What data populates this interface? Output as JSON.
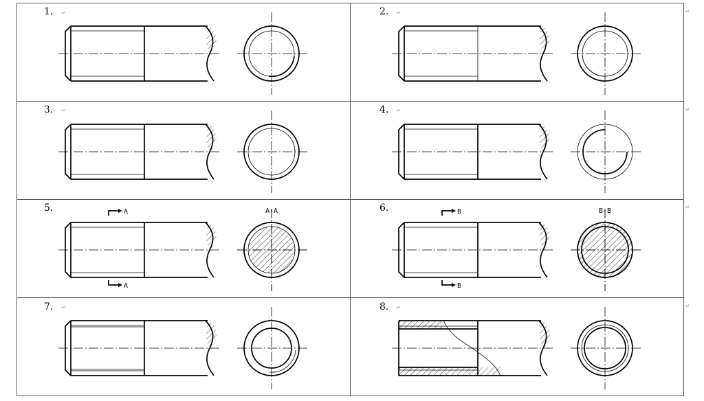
{
  "paragraph_mark": "↵",
  "items": [
    {
      "number": "1.",
      "variant": "1"
    },
    {
      "number": "2.",
      "variant": "2"
    },
    {
      "number": "3.",
      "variant": "3"
    },
    {
      "number": "4.",
      "variant": "4"
    },
    {
      "number": "5.",
      "variant": "5",
      "section_letter": "A",
      "section_title": "A-A"
    },
    {
      "number": "6.",
      "variant": "6",
      "section_letter": "B",
      "section_title": "B-B"
    },
    {
      "number": "7.",
      "variant": "7"
    },
    {
      "number": "8.",
      "variant": "8"
    }
  ],
  "colors": {
    "line": "#000000",
    "border": "#666666"
  }
}
